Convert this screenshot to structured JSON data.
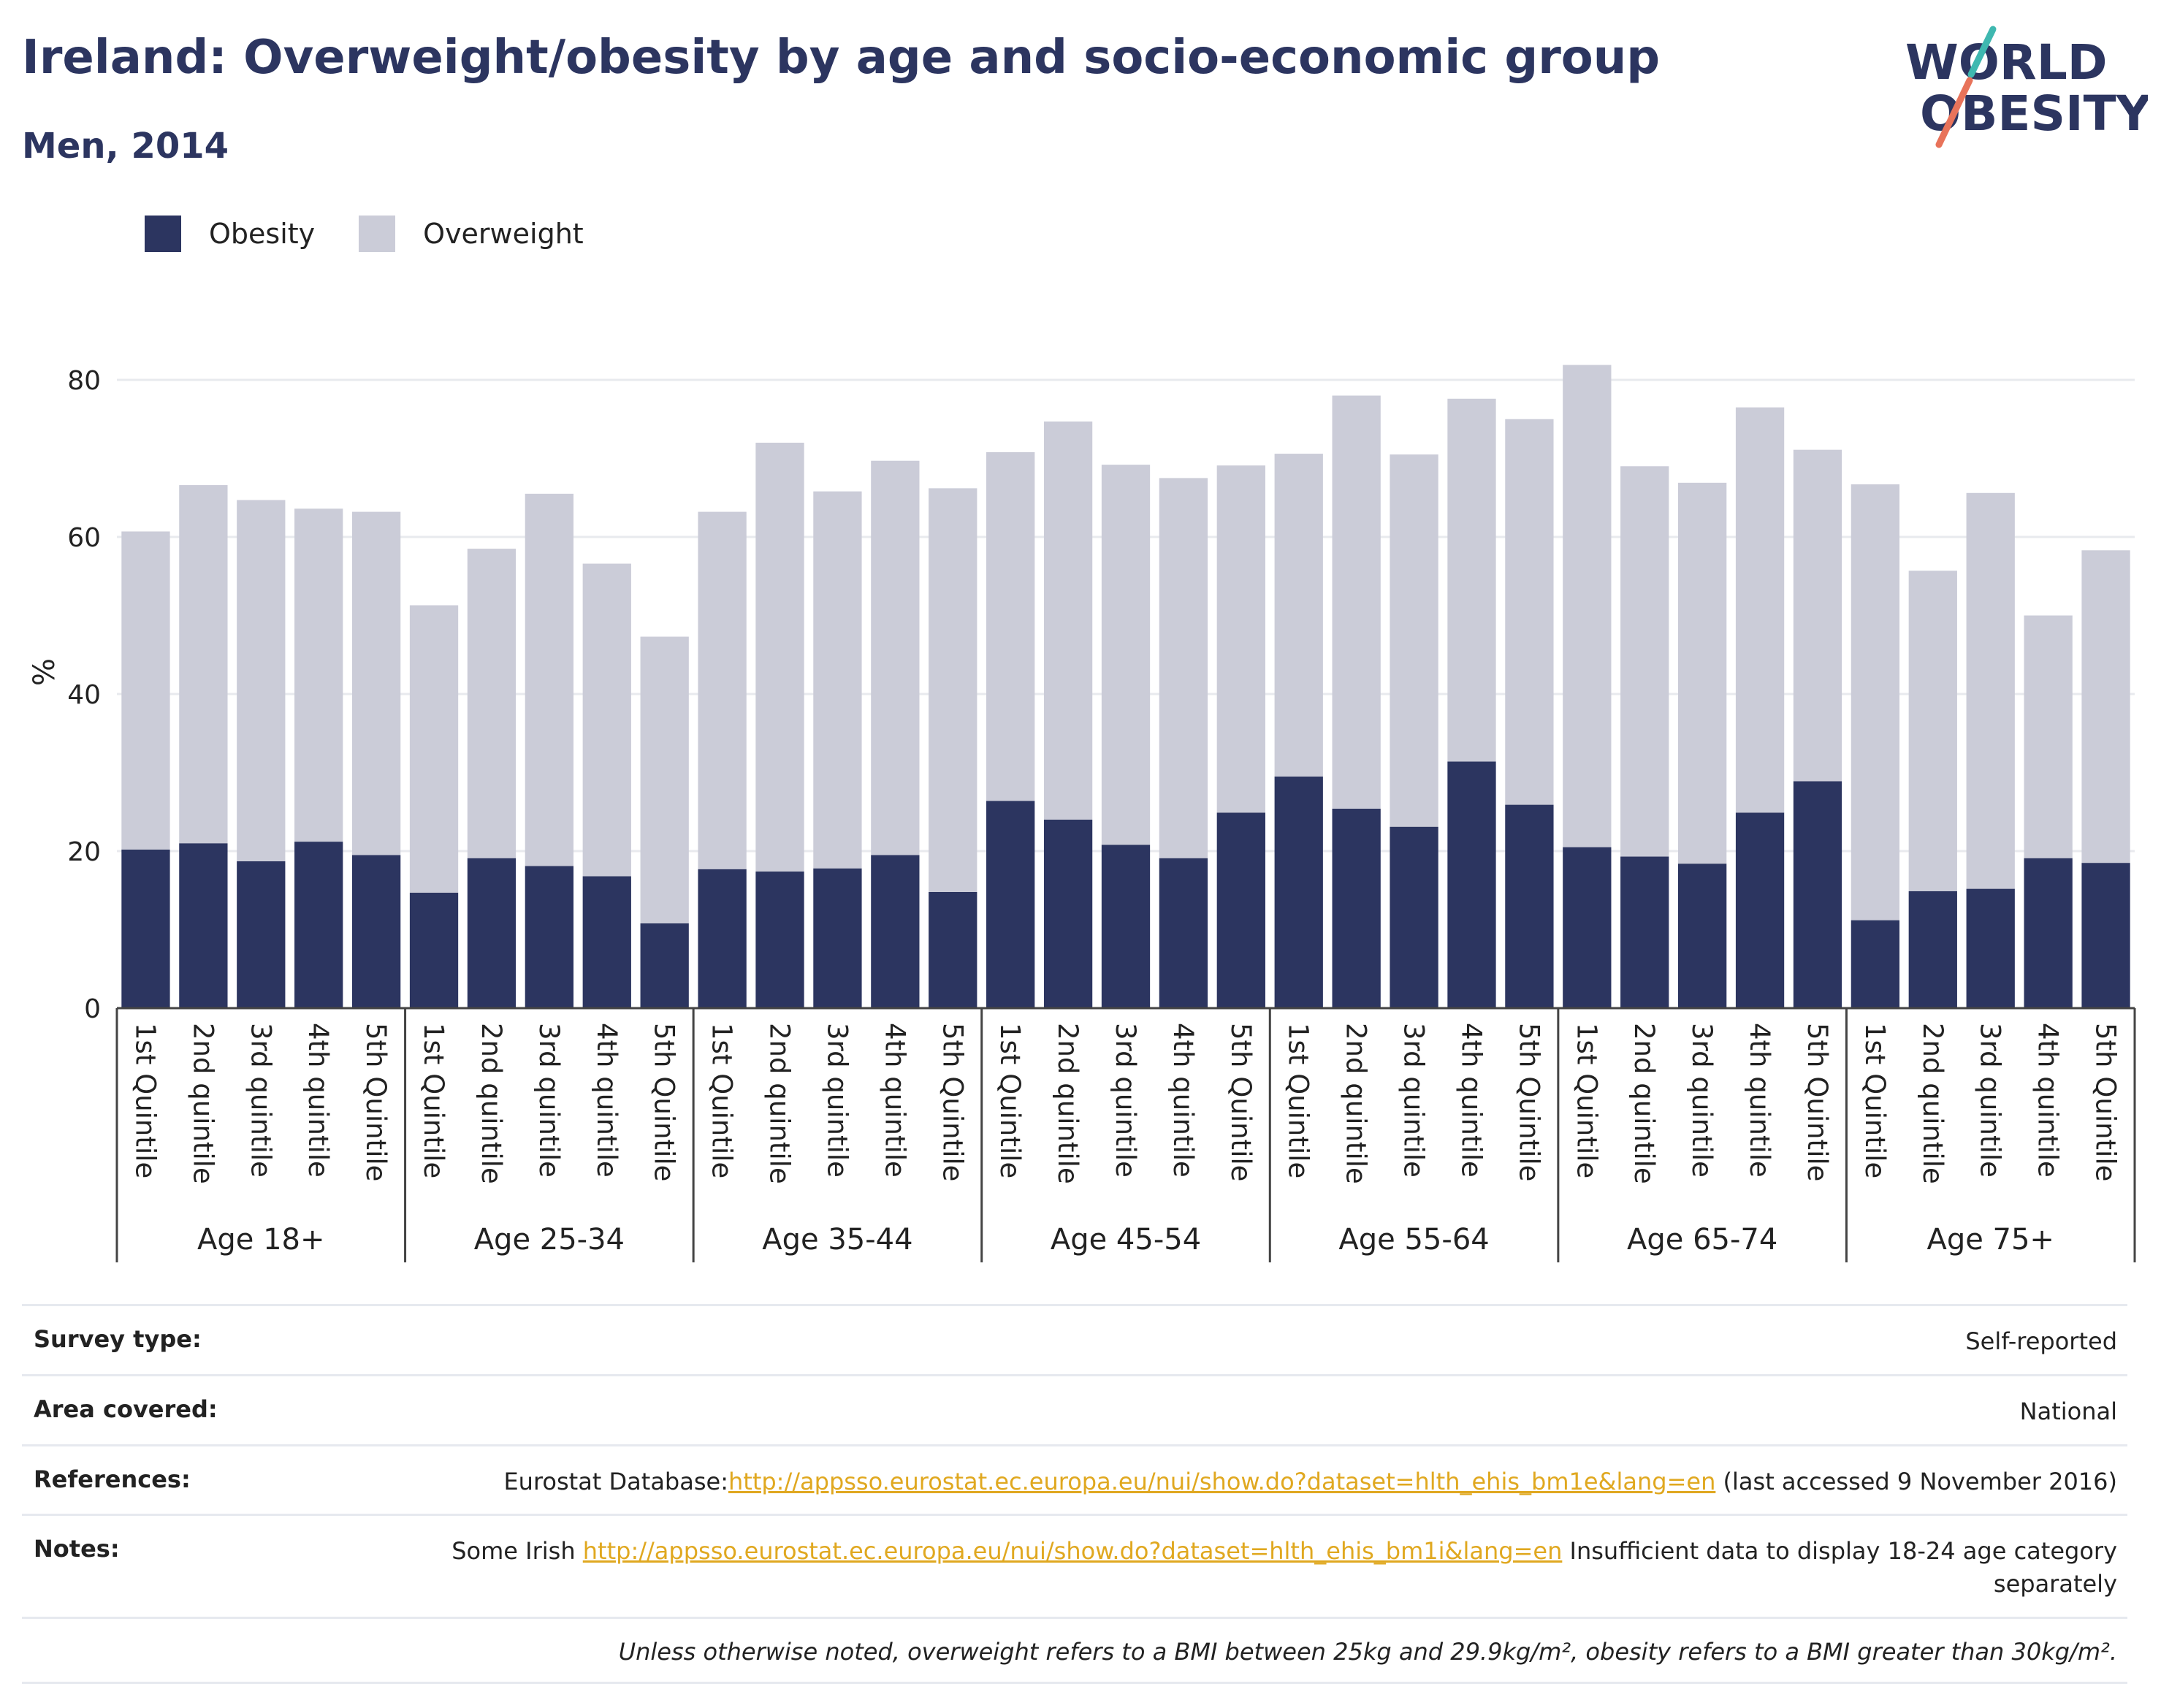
{
  "header": {
    "title": "Ireland: Overweight/obesity by age and socio-economic group",
    "subtitle": "Men, 2014"
  },
  "logo": {
    "line1": "WORLD",
    "line2": "OBESITY"
  },
  "colors": {
    "obesity": "#2c3560",
    "overweight": "#cbccd8",
    "logo_teal": "#3fb8b0",
    "logo_coral": "#e8735a",
    "link": "#e0a820"
  },
  "legend": {
    "obesity_label": "Obesity",
    "overweight_label": "Overweight"
  },
  "chart_data": {
    "type": "bar",
    "stacked": true,
    "ylabel": "%",
    "ylim": [
      0,
      85
    ],
    "yticks": [
      0,
      20,
      40,
      60,
      80
    ],
    "grid": true,
    "legend_position": "top-left",
    "groups": [
      {
        "name": "Age 18+",
        "categories": [
          "1st Quintile",
          "2nd quintile",
          "3rd quintile",
          "4th quintile",
          "5th Quintile"
        ]
      },
      {
        "name": "Age 25-34",
        "categories": [
          "1st Quintile",
          "2nd quintile",
          "3rd quintile",
          "4th quintile",
          "5th Quintile"
        ]
      },
      {
        "name": "Age 35-44",
        "categories": [
          "1st Quintile",
          "2nd quintile",
          "3rd quintile",
          "4th quintile",
          "5th Quintile"
        ]
      },
      {
        "name": "Age 45-54",
        "categories": [
          "1st Quintile",
          "2nd quintile",
          "3rd quintile",
          "4th quintile",
          "5th Quintile"
        ]
      },
      {
        "name": "Age 55-64",
        "categories": [
          "1st Quintile",
          "2nd quintile",
          "3rd quintile",
          "4th quintile",
          "5th Quintile"
        ]
      },
      {
        "name": "Age 65-74",
        "categories": [
          "1st Quintile",
          "2nd quintile",
          "3rd quintile",
          "4th quintile",
          "5th Quintile"
        ]
      },
      {
        "name": "Age 75+",
        "categories": [
          "1st Quintile",
          "2nd quintile",
          "3rd quintile",
          "4th quintile",
          "5th Quintile"
        ]
      }
    ],
    "series": [
      {
        "name": "Obesity",
        "values": [
          20.2,
          21.0,
          18.7,
          21.2,
          19.5,
          14.7,
          19.1,
          18.1,
          16.8,
          10.8,
          17.7,
          17.4,
          17.8,
          19.5,
          14.8,
          26.4,
          24.0,
          20.8,
          19.1,
          24.9,
          29.5,
          25.4,
          23.1,
          31.4,
          25.9,
          20.5,
          19.3,
          18.4,
          24.9,
          28.9,
          11.2,
          14.9,
          15.2,
          19.1,
          18.5
        ]
      },
      {
        "name": "Overweight",
        "values": [
          40.5,
          45.6,
          46.0,
          42.4,
          43.7,
          36.6,
          39.4,
          47.4,
          39.8,
          36.5,
          45.5,
          54.6,
          48.0,
          50.2,
          51.4,
          44.4,
          50.7,
          48.4,
          48.4,
          44.2,
          41.1,
          52.6,
          47.4,
          46.2,
          49.1,
          61.4,
          49.7,
          48.5,
          51.6,
          42.2,
          55.5,
          40.8,
          50.4,
          30.9,
          39.8
        ]
      }
    ]
  },
  "info": {
    "survey_label": "Survey type:",
    "survey_value": "Self-reported",
    "area_label": "Area covered:",
    "area_value": "National",
    "refs_label": "References:",
    "refs_prefix": "Eurostat Database:",
    "refs_link": "http://appsso.eurostat.ec.europa.eu/nui/show.do?dataset=hlth_ehis_bm1e&lang=en",
    "refs_suffix": " (last accessed 9 November 2016)",
    "notes_label": "Notes:",
    "notes_prefix": "Some Irish ",
    "notes_link": "http://appsso.eurostat.ec.europa.eu/nui/show.do?dataset=hlth_ehis_bm1i&lang=en",
    "notes_suffix": " Insufficient data to display 18-24 age category separately",
    "footnote": "Unless otherwise noted, overweight refers to a BMI between 25kg and 29.9kg/m², obesity refers to a BMI greater than 30kg/m²."
  }
}
